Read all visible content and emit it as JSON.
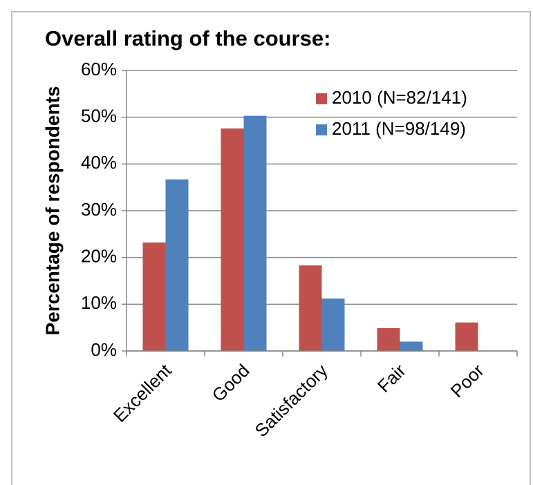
{
  "chart_data": {
    "type": "bar",
    "title": "Overall rating of the course:",
    "y_label": "Percentage of respondents",
    "categories": [
      "Excellent",
      "Good",
      "Satisfactory",
      "Fair",
      "Poor"
    ],
    "series": [
      {
        "name": "2010 (N=82/141)",
        "color": "#c0504d",
        "values": [
          23.2,
          47.6,
          18.3,
          4.9,
          6.1
        ]
      },
      {
        "name": "2011 (N=98/149)",
        "color": "#4f81bd",
        "values": [
          36.7,
          50.3,
          11.2,
          2.0,
          0
        ]
      }
    ],
    "ylim": [
      0,
      60
    ],
    "yticks": [
      {
        "value": 0,
        "label": "0%"
      },
      {
        "value": 10,
        "label": "10%"
      },
      {
        "value": 20,
        "label": "20%"
      },
      {
        "value": 30,
        "label": "30%"
      },
      {
        "value": 40,
        "label": "40%"
      },
      {
        "value": 50,
        "label": "50%"
      },
      {
        "value": 60,
        "label": "60%"
      }
    ],
    "grid": true,
    "legend": "upper right"
  }
}
